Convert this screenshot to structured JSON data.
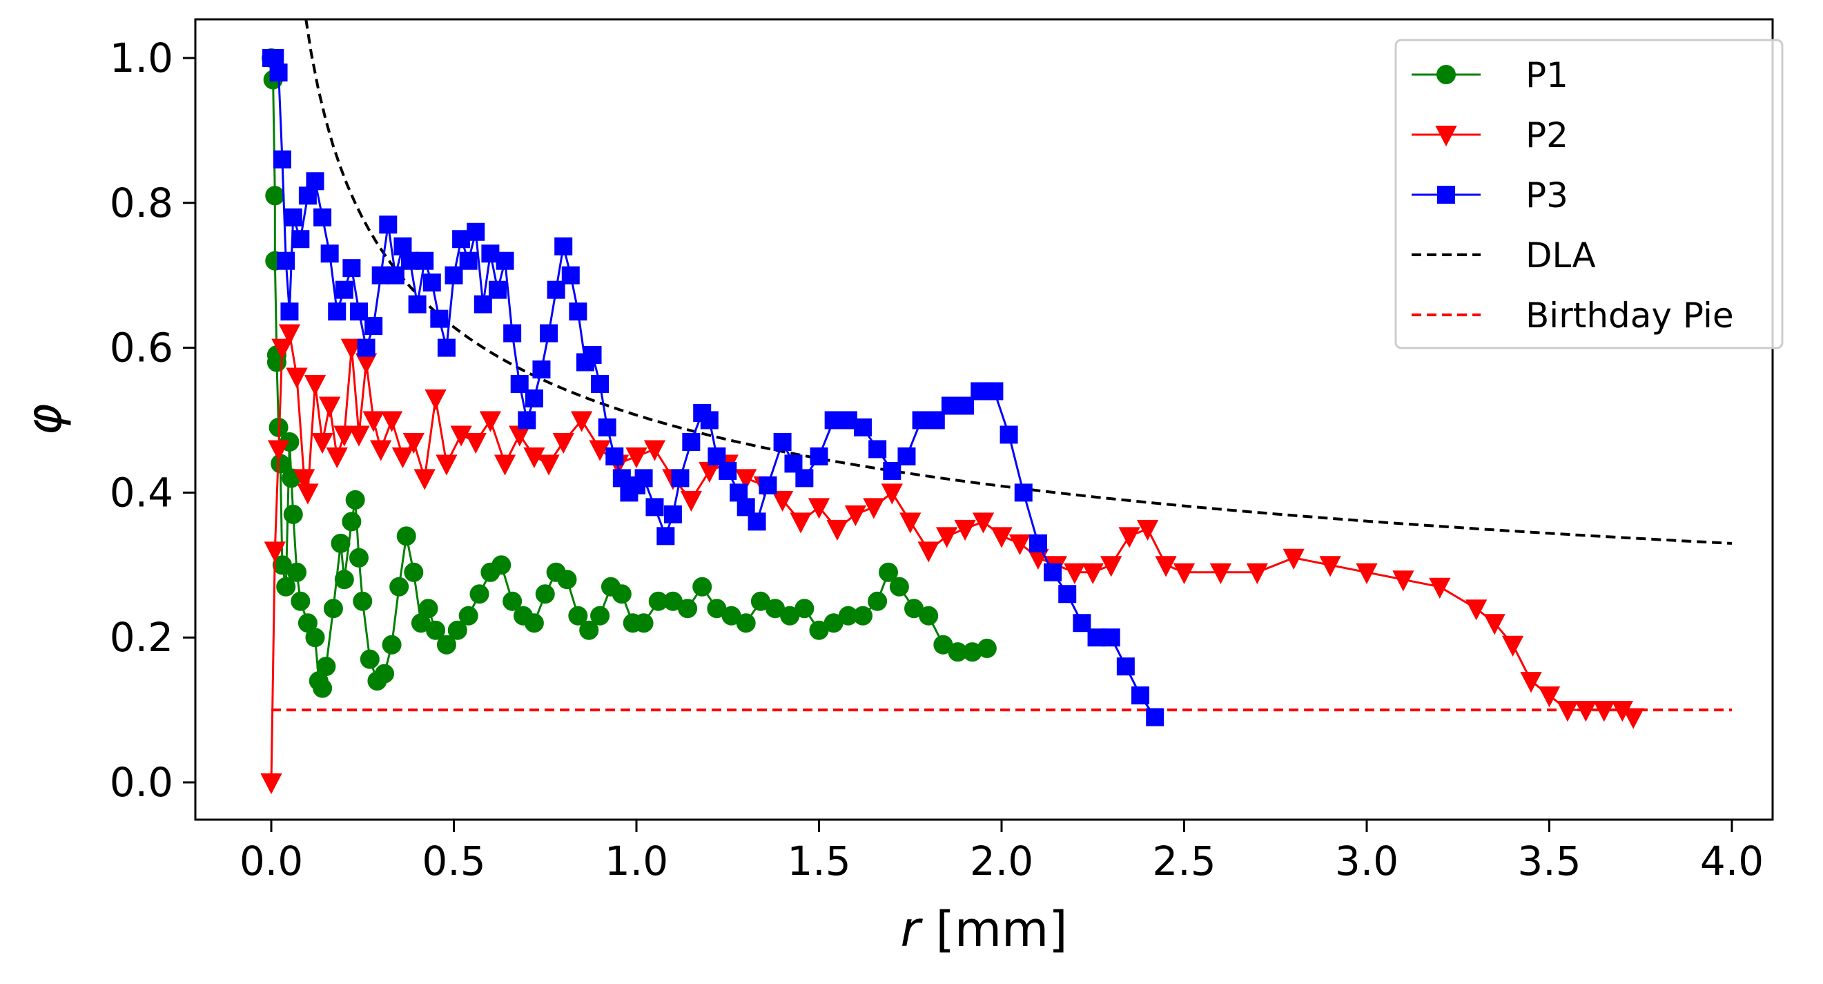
{
  "chart_data": {
    "type": "line",
    "title": "",
    "xlabel_var": "r",
    "xlabel_unit": " [mm]",
    "ylabel": "φ",
    "xlim": [
      -0.2,
      4.1
    ],
    "ylim": [
      -0.05,
      1.05
    ],
    "xticks": [
      0.0,
      0.5,
      1.0,
      1.5,
      2.0,
      2.5,
      3.0,
      3.5,
      4.0
    ],
    "xtick_labels": [
      "0.0",
      "0.5",
      "1.0",
      "1.5",
      "2.0",
      "2.5",
      "3.0",
      "3.5",
      "4.0"
    ],
    "yticks": [
      0.0,
      0.2,
      0.4,
      0.6,
      0.8,
      1.0
    ],
    "ytick_labels": [
      "0.0",
      "0.2",
      "0.4",
      "0.6",
      "0.8",
      "1.0"
    ],
    "legend_position": "top-right",
    "series": [
      {
        "name": "P1",
        "color": "#008000",
        "marker": "circle",
        "linestyle": "solid",
        "x": [
          0.0,
          0.005,
          0.01,
          0.01,
          0.015,
          0.015,
          0.02,
          0.025,
          0.03,
          0.04,
          0.05,
          0.055,
          0.06,
          0.07,
          0.08,
          0.1,
          0.12,
          0.13,
          0.14,
          0.15,
          0.17,
          0.19,
          0.2,
          0.22,
          0.23,
          0.24,
          0.25,
          0.27,
          0.29,
          0.31,
          0.33,
          0.35,
          0.37,
          0.39,
          0.41,
          0.43,
          0.45,
          0.48,
          0.51,
          0.54,
          0.57,
          0.6,
          0.63,
          0.66,
          0.69,
          0.72,
          0.75,
          0.78,
          0.81,
          0.84,
          0.87,
          0.9,
          0.93,
          0.96,
          0.99,
          1.02,
          1.06,
          1.1,
          1.14,
          1.18,
          1.22,
          1.26,
          1.3,
          1.34,
          1.38,
          1.42,
          1.46,
          1.5,
          1.54,
          1.58,
          1.62,
          1.66,
          1.69,
          1.72,
          1.76,
          1.8,
          1.84,
          1.88,
          1.92,
          1.96
        ],
        "y": [
          1.0,
          0.97,
          0.81,
          0.72,
          0.59,
          0.58,
          0.49,
          0.44,
          0.3,
          0.27,
          0.47,
          0.42,
          0.37,
          0.29,
          0.25,
          0.22,
          0.2,
          0.14,
          0.13,
          0.16,
          0.24,
          0.33,
          0.28,
          0.36,
          0.39,
          0.31,
          0.25,
          0.17,
          0.14,
          0.15,
          0.19,
          0.27,
          0.34,
          0.29,
          0.22,
          0.24,
          0.21,
          0.19,
          0.21,
          0.23,
          0.26,
          0.29,
          0.3,
          0.25,
          0.23,
          0.22,
          0.26,
          0.29,
          0.28,
          0.23,
          0.21,
          0.23,
          0.27,
          0.26,
          0.22,
          0.22,
          0.25,
          0.25,
          0.24,
          0.27,
          0.24,
          0.23,
          0.22,
          0.25,
          0.24,
          0.23,
          0.24,
          0.21,
          0.22,
          0.23,
          0.23,
          0.25,
          0.29,
          0.27,
          0.24,
          0.23,
          0.19,
          0.18,
          0.18,
          0.185
        ]
      },
      {
        "name": "P2",
        "color": "#ff0000",
        "marker": "triangle-down",
        "linestyle": "solid",
        "x": [
          0.0,
          0.01,
          0.02,
          0.03,
          0.05,
          0.07,
          0.09,
          0.1,
          0.12,
          0.14,
          0.16,
          0.18,
          0.2,
          0.22,
          0.24,
          0.26,
          0.28,
          0.3,
          0.33,
          0.36,
          0.39,
          0.42,
          0.45,
          0.48,
          0.52,
          0.56,
          0.6,
          0.64,
          0.68,
          0.72,
          0.76,
          0.8,
          0.85,
          0.9,
          0.95,
          1.0,
          1.05,
          1.1,
          1.15,
          1.2,
          1.25,
          1.3,
          1.35,
          1.4,
          1.45,
          1.5,
          1.55,
          1.6,
          1.65,
          1.7,
          1.75,
          1.8,
          1.85,
          1.9,
          1.95,
          2.0,
          2.05,
          2.1,
          2.15,
          2.2,
          2.25,
          2.3,
          2.35,
          2.4,
          2.45,
          2.5,
          2.6,
          2.7,
          2.8,
          2.9,
          3.0,
          3.1,
          3.2,
          3.3,
          3.35,
          3.4,
          3.45,
          3.5,
          3.55,
          3.6,
          3.65,
          3.7,
          3.73
        ],
        "y": [
          0.0,
          0.32,
          0.46,
          0.6,
          0.62,
          0.56,
          0.42,
          0.4,
          0.55,
          0.47,
          0.52,
          0.45,
          0.48,
          0.6,
          0.48,
          0.58,
          0.5,
          0.46,
          0.5,
          0.45,
          0.47,
          0.42,
          0.53,
          0.44,
          0.48,
          0.47,
          0.5,
          0.44,
          0.48,
          0.45,
          0.44,
          0.47,
          0.5,
          0.46,
          0.44,
          0.45,
          0.46,
          0.42,
          0.39,
          0.43,
          0.44,
          0.42,
          0.41,
          0.39,
          0.36,
          0.38,
          0.35,
          0.37,
          0.38,
          0.4,
          0.36,
          0.32,
          0.34,
          0.35,
          0.36,
          0.34,
          0.33,
          0.31,
          0.3,
          0.29,
          0.29,
          0.3,
          0.34,
          0.35,
          0.3,
          0.29,
          0.29,
          0.29,
          0.31,
          0.3,
          0.29,
          0.28,
          0.27,
          0.24,
          0.22,
          0.19,
          0.14,
          0.12,
          0.1,
          0.1,
          0.1,
          0.1,
          0.09
        ]
      },
      {
        "name": "P3",
        "color": "#0000ff",
        "marker": "square",
        "linestyle": "solid",
        "x": [
          0.0,
          0.01,
          0.02,
          0.03,
          0.04,
          0.05,
          0.06,
          0.08,
          0.1,
          0.12,
          0.14,
          0.16,
          0.18,
          0.2,
          0.22,
          0.24,
          0.26,
          0.28,
          0.3,
          0.32,
          0.34,
          0.36,
          0.38,
          0.4,
          0.42,
          0.44,
          0.46,
          0.48,
          0.5,
          0.52,
          0.54,
          0.56,
          0.58,
          0.6,
          0.62,
          0.64,
          0.66,
          0.68,
          0.7,
          0.72,
          0.74,
          0.76,
          0.78,
          0.8,
          0.82,
          0.84,
          0.86,
          0.88,
          0.9,
          0.92,
          0.94,
          0.96,
          0.98,
          1.0,
          1.02,
          1.05,
          1.08,
          1.1,
          1.12,
          1.15,
          1.18,
          1.2,
          1.22,
          1.25,
          1.28,
          1.3,
          1.33,
          1.36,
          1.4,
          1.43,
          1.46,
          1.5,
          1.54,
          1.58,
          1.62,
          1.66,
          1.7,
          1.74,
          1.78,
          1.82,
          1.86,
          1.9,
          1.94,
          1.98,
          2.02,
          2.06,
          2.1,
          2.14,
          2.18,
          2.22,
          2.26,
          2.3,
          2.34,
          2.38,
          2.42
        ],
        "y": [
          1.0,
          1.0,
          0.98,
          0.86,
          0.72,
          0.65,
          0.78,
          0.75,
          0.81,
          0.83,
          0.78,
          0.73,
          0.65,
          0.68,
          0.71,
          0.65,
          0.6,
          0.63,
          0.7,
          0.77,
          0.7,
          0.74,
          0.72,
          0.66,
          0.72,
          0.69,
          0.64,
          0.6,
          0.7,
          0.75,
          0.72,
          0.76,
          0.66,
          0.73,
          0.68,
          0.72,
          0.62,
          0.55,
          0.5,
          0.53,
          0.57,
          0.62,
          0.68,
          0.74,
          0.7,
          0.65,
          0.58,
          0.59,
          0.55,
          0.49,
          0.45,
          0.42,
          0.4,
          0.41,
          0.42,
          0.38,
          0.34,
          0.37,
          0.42,
          0.47,
          0.51,
          0.5,
          0.45,
          0.43,
          0.4,
          0.38,
          0.36,
          0.41,
          0.47,
          0.44,
          0.42,
          0.45,
          0.5,
          0.5,
          0.49,
          0.46,
          0.43,
          0.45,
          0.5,
          0.5,
          0.52,
          0.52,
          0.54,
          0.54,
          0.48,
          0.4,
          0.33,
          0.29,
          0.26,
          0.22,
          0.2,
          0.2,
          0.16,
          0.12,
          0.09
        ]
      },
      {
        "name": "DLA",
        "color": "#000000",
        "marker": "none",
        "linestyle": "dashed",
        "function": "power-law",
        "coefficient": 0.507,
        "exponent": -0.31,
        "x_start": 0.05,
        "x_end": 4.0
      },
      {
        "name": "Birthday Pie",
        "color": "#ff0000",
        "marker": "none",
        "linestyle": "dashed",
        "x": [
          0.0,
          4.0
        ],
        "y": [
          0.1,
          0.1
        ]
      }
    ]
  }
}
